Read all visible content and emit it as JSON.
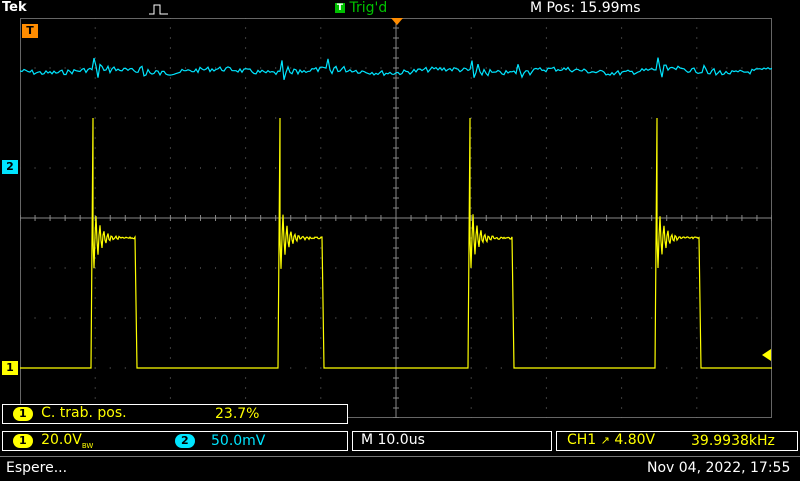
{
  "brand": "Tek",
  "trigger": {
    "state": "Trig'd"
  },
  "horizontal": {
    "position": "M Pos: 15.99ms",
    "timebase": "M 10.0us"
  },
  "measure": {
    "channel": "1",
    "label": "C. trab. pos.",
    "value": "23.7%"
  },
  "channels": [
    {
      "id": "1",
      "scale": "20.0V",
      "suffix": "BW",
      "color": "#ffff00"
    },
    {
      "id": "2",
      "scale": "50.0mV",
      "color": "#00e5ff"
    }
  ],
  "trigger_info": {
    "source": "CH1",
    "slope": "↗",
    "level": "4.80V",
    "frequency": "39.9938kHz"
  },
  "status": {
    "message": "Espere...",
    "datetime": "Nov 04, 2022, 17:55"
  },
  "markers": {
    "ch1": "1",
    "ch2": "2",
    "trigger": "T"
  }
}
